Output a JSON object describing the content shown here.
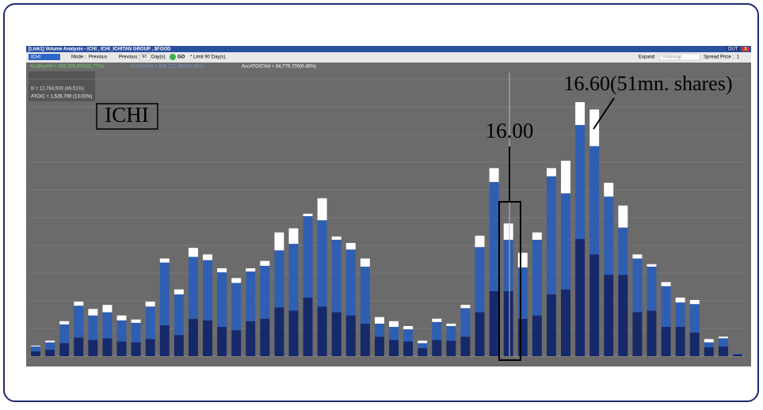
{
  "window": {
    "title": "[Link1] Volume Analysis - ICHI , ICHI_ICHITAN GROUP , $FOOD",
    "out_button": "OUT",
    "close_button": "X"
  },
  "toolbar": {
    "symbol": "ICHI",
    "mode_label": "Mode :",
    "mode_value": "Previous",
    "previous_label": "Previous :",
    "previous_days": "90",
    "days_unit": "Day(s)",
    "go_button": "GO",
    "limit_note": "* Limit 90 Day(s).",
    "expand_button": "Expand",
    "group_value": "UnGroup",
    "spread_label": "Spread Price :",
    "spread_value": "1"
  },
  "stats": {
    "buy": "AccBuyVol = 383,305,900(42.77%)",
    "sell": "AccSellVol = 438,212,400(48.89%)",
    "atoc": "AccATO/CVol = 84,779,700(9.46%)"
  },
  "info_box": [
    "B = 12,784,500 (46.51%)",
    "ATO/C = 1,526,700 (13.01%)"
  ],
  "annotations": {
    "ticker": "ICHI",
    "price_marker": "16.00",
    "peak_note": "16.60(51mn. shares)"
  },
  "chart": {
    "type": "bar",
    "stacked": true,
    "ylim": [
      0,
      35
    ],
    "series": [
      {
        "color": "#16296a",
        "values": [
          0.6,
          0.8,
          1.6,
          2.3,
          2.0,
          2.2,
          1.8,
          1.7,
          2.1,
          3.8,
          2.6,
          4.6,
          4.4,
          3.6,
          3.2,
          4.3,
          4.6,
          6.0,
          5.6,
          7.2,
          6.1,
          5.4,
          5.0,
          4.0,
          2.4,
          2.0,
          1.8,
          1.0,
          2.0,
          1.9,
          2.4,
          5.4,
          8.0,
          8.0,
          4.6,
          5.0,
          7.6,
          8.2,
          14.4,
          12.5,
          10.0,
          10.0,
          5.4,
          5.6,
          3.6,
          3.6,
          2.9,
          1.1,
          1.2,
          0.2
        ]
      },
      {
        "color": "#2f5fb3",
        "values": [
          0.6,
          0.9,
          2.3,
          3.9,
          3.0,
          3.2,
          2.6,
          2.4,
          4.0,
          7.7,
          5.0,
          7.6,
          7.4,
          6.7,
          5.8,
          6.1,
          6.5,
          7.0,
          8.2,
          10.0,
          10.6,
          8.9,
          8.1,
          7.0,
          1.6,
          1.6,
          1.5,
          0.6,
          2.2,
          1.8,
          3.5,
          8.0,
          13.4,
          6.3,
          6.3,
          9.3,
          14.5,
          11.8,
          14.0,
          13.3,
          9.6,
          5.8,
          6.6,
          5.4,
          5.0,
          3.0,
          3.5,
          0.6,
          1.0,
          0.1
        ]
      },
      {
        "color": "#ffffff",
        "values": [
          0.1,
          0.2,
          0.4,
          0.5,
          0.8,
          0.9,
          0.6,
          0.4,
          0.6,
          0.5,
          0.6,
          1.1,
          0.7,
          0.5,
          0.6,
          0.4,
          0.6,
          2.2,
          1.9,
          0.3,
          2.7,
          0.4,
          0.8,
          1.0,
          0.8,
          0.7,
          0.4,
          0.3,
          0.4,
          0.3,
          0.4,
          1.4,
          1.7,
          2.0,
          1.8,
          0.9,
          1.0,
          4.0,
          2.8,
          4.5,
          1.7,
          2.7,
          0.5,
          0.3,
          0.5,
          0.6,
          0.5,
          0.4,
          0.2,
          0.0
        ]
      }
    ]
  }
}
